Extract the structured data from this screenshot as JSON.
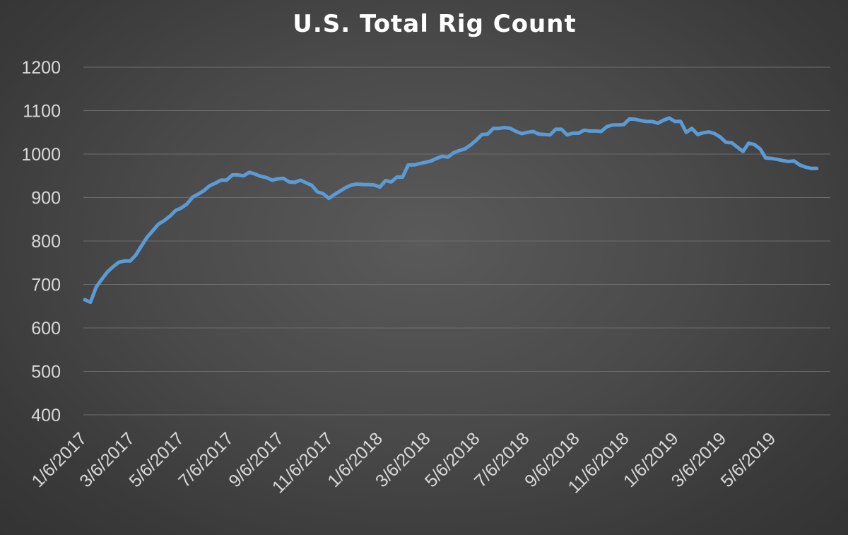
{
  "chart_data": {
    "type": "line",
    "title": "U.S. Total Rig Count",
    "xlabel": "",
    "ylabel": "",
    "ylim": [
      400,
      1200
    ],
    "yticks": [
      "400",
      "500",
      "600",
      "700",
      "800",
      "900",
      "1000",
      "1100",
      "1200"
    ],
    "xticks": [
      "1/6/2017",
      "3/6/2017",
      "5/6/2017",
      "7/6/2017",
      "9/6/2017",
      "11/6/2017",
      "1/6/2018",
      "3/6/2018",
      "5/6/2018",
      "7/6/2018",
      "9/6/2018",
      "11/6/2018",
      "1/6/2019",
      "3/6/2019",
      "5/6/2019"
    ],
    "grid": true,
    "legend": "none",
    "series_color": "#5b9bd5",
    "series": [
      {
        "x": [
          "2017-01-06",
          "2017-01-13",
          "2017-01-20",
          "2017-01-27",
          "2017-02-03",
          "2017-02-10",
          "2017-02-17",
          "2017-02-24",
          "2017-03-03",
          "2017-03-10",
          "2017-03-17",
          "2017-03-24",
          "2017-03-31",
          "2017-04-07",
          "2017-04-14",
          "2017-04-21",
          "2017-04-28",
          "2017-05-05",
          "2017-05-12",
          "2017-05-19",
          "2017-05-26",
          "2017-06-02",
          "2017-06-09",
          "2017-06-16",
          "2017-06-23",
          "2017-06-30",
          "2017-07-07",
          "2017-07-14",
          "2017-07-21",
          "2017-07-28",
          "2017-08-04",
          "2017-08-11",
          "2017-08-18",
          "2017-08-25",
          "2017-09-01",
          "2017-09-08",
          "2017-09-15",
          "2017-09-22",
          "2017-09-29",
          "2017-10-06",
          "2017-10-13",
          "2017-10-20",
          "2017-10-27",
          "2017-11-03",
          "2017-11-10",
          "2017-11-17",
          "2017-11-24",
          "2017-12-01",
          "2017-12-08",
          "2017-12-15",
          "2017-12-22",
          "2017-12-29",
          "2018-01-05",
          "2018-01-12",
          "2018-01-19",
          "2018-01-26",
          "2018-02-02",
          "2018-02-09",
          "2018-02-16",
          "2018-02-23",
          "2018-03-02",
          "2018-03-09",
          "2018-03-16",
          "2018-03-23",
          "2018-03-30",
          "2018-04-06",
          "2018-04-13",
          "2018-04-20",
          "2018-04-27",
          "2018-05-04",
          "2018-05-11",
          "2018-05-18",
          "2018-05-25",
          "2018-06-01",
          "2018-06-08",
          "2018-06-15",
          "2018-06-22",
          "2018-06-29",
          "2018-07-06",
          "2018-07-13",
          "2018-07-20",
          "2018-07-27",
          "2018-08-03",
          "2018-08-10",
          "2018-08-17",
          "2018-08-24",
          "2018-08-31",
          "2018-09-07",
          "2018-09-14",
          "2018-09-21",
          "2018-09-28",
          "2018-10-05",
          "2018-10-12",
          "2018-10-19",
          "2018-10-26",
          "2018-11-02",
          "2018-11-09",
          "2018-11-16",
          "2018-11-23",
          "2018-11-30",
          "2018-12-07",
          "2018-12-14",
          "2018-12-21",
          "2018-12-28",
          "2019-01-04",
          "2019-01-11",
          "2019-01-18",
          "2019-01-25",
          "2019-02-01",
          "2019-02-08",
          "2019-02-15",
          "2019-02-22",
          "2019-03-01",
          "2019-03-08",
          "2019-03-15",
          "2019-03-22",
          "2019-03-29",
          "2019-04-05",
          "2019-04-12",
          "2019-04-19",
          "2019-04-26",
          "2019-05-03",
          "2019-05-10",
          "2019-05-17",
          "2019-05-24",
          "2019-05-31",
          "2019-06-07",
          "2019-06-14",
          "2019-06-21",
          "2019-06-28"
        ],
        "values": [
          665,
          659,
          694,
          712,
          729,
          741,
          751,
          754,
          754,
          768,
          789,
          809,
          824,
          839,
          847,
          857,
          870,
          876,
          885,
          901,
          908,
          916,
          927,
          933,
          940,
          940,
          952,
          952,
          950,
          958,
          954,
          949,
          946,
          940,
          943,
          944,
          936,
          935,
          940,
          934,
          928,
          913,
          909,
          898,
          907,
          915,
          923,
          929,
          931,
          930,
          930,
          929,
          924,
          939,
          936,
          947,
          947,
          975,
          975,
          978,
          981,
          984,
          990,
          995,
          993,
          1003,
          1008,
          1012,
          1021,
          1032,
          1045,
          1046,
          1059,
          1059,
          1061,
          1059,
          1052,
          1047,
          1050,
          1052,
          1046,
          1045,
          1044,
          1057,
          1057,
          1044,
          1048,
          1048,
          1055,
          1053,
          1053,
          1052,
          1063,
          1067,
          1067,
          1068,
          1081,
          1080,
          1077,
          1075,
          1075,
          1071,
          1078,
          1083,
          1075,
          1075,
          1050,
          1059,
          1045,
          1049,
          1051,
          1047,
          1039,
          1027,
          1026,
          1016,
          1006,
          1025,
          1022,
          1012,
          991,
          990,
          988,
          985,
          983,
          984,
          975,
          970,
          967,
          967
        ]
      }
    ]
  }
}
